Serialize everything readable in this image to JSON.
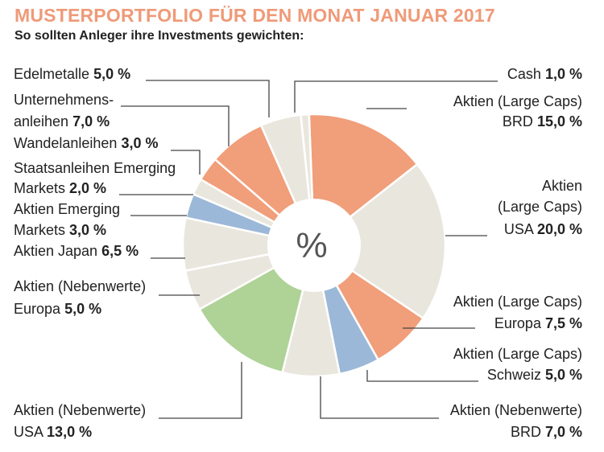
{
  "header": {
    "title": "MUSTERPORTFOLIO FÜR DEN MONAT JANUAR 2017",
    "subtitle": "So sollten Anleger ihre Investments gewichten:"
  },
  "center_symbol": "%",
  "colors": {
    "orange": "#f19e7a",
    "beige": "#e9e6dd",
    "blue": "#9cb8d8",
    "green": "#afd297",
    "title": "#ef9a78"
  },
  "chart_data": {
    "type": "pie",
    "subtype": "donut",
    "unit": "%",
    "slices": [
      {
        "lines": [
          "Aktien (Large Caps)",
          "BRD"
        ],
        "value": 15.0,
        "value_label": "15,0 %",
        "color": "orange"
      },
      {
        "lines": [
          "Aktien",
          "(Large Caps)",
          "USA"
        ],
        "value": 20.0,
        "value_label": "20,0 %",
        "color": "beige"
      },
      {
        "lines": [
          "Aktien (Large Caps)",
          "Europa"
        ],
        "value": 7.5,
        "value_label": "7,5 %",
        "color": "orange"
      },
      {
        "lines": [
          "Aktien (Large Caps)",
          "Schweiz"
        ],
        "value": 5.0,
        "value_label": "5,0 %",
        "color": "blue"
      },
      {
        "lines": [
          "Aktien (Nebenwerte)",
          "BRD"
        ],
        "value": 7.0,
        "value_label": "7,0 %",
        "color": "beige"
      },
      {
        "lines": [
          "Aktien (Nebenwerte)",
          "USA"
        ],
        "value": 13.0,
        "value_label": "13,0 %",
        "color": "green"
      },
      {
        "lines": [
          "Aktien (Nebenwerte)",
          "Europa"
        ],
        "value": 5.0,
        "value_label": "5,0 %",
        "color": "beige"
      },
      {
        "lines": [
          "Aktien Japan"
        ],
        "value": 6.5,
        "value_label": "6,5 %",
        "color": "beige"
      },
      {
        "lines": [
          "Aktien Emerging",
          "Markets"
        ],
        "value": 3.0,
        "value_label": "3,0 %",
        "color": "blue"
      },
      {
        "lines": [
          "Staatsanleihen Emerging",
          "Markets"
        ],
        "value": 2.0,
        "value_label": "2,0 %",
        "color": "beige"
      },
      {
        "lines": [
          "Wandelanleihen"
        ],
        "value": 3.0,
        "value_label": "3,0 %",
        "color": "orange"
      },
      {
        "lines": [
          "Unternehmens-",
          "anleihen"
        ],
        "value": 7.0,
        "value_label": "7,0 %",
        "color": "orange"
      },
      {
        "lines": [
          "Edelmetalle"
        ],
        "value": 5.0,
        "value_label": "5,0 %",
        "color": "beige"
      },
      {
        "lines": [
          "Cash"
        ],
        "value": 1.0,
        "value_label": "1,0 %",
        "color": "beige"
      }
    ]
  }
}
